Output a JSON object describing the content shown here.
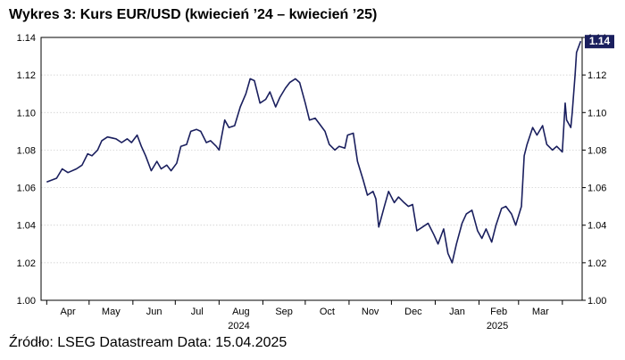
{
  "title": "Wykres 3: Kurs EUR/USD (kwiecień ’24 – kwiecień ’25)",
  "source": "Źródło: LSEG Datastream Data: 15.04.2025",
  "chart_data": {
    "type": "line",
    "ylim": [
      1.0,
      1.14
    ],
    "y_ticks": [
      "1.00",
      "1.02",
      "1.04",
      "1.06",
      "1.08",
      "1.10",
      "1.12",
      "1.14"
    ],
    "x_month_labels": [
      "Apr",
      "May",
      "Jun",
      "Jul",
      "Aug",
      "Sep",
      "Oct",
      "Nov",
      "Dec",
      "Jan",
      "Feb",
      "Mar"
    ],
    "x_year_labels": [
      "2024",
      "2025"
    ],
    "last_value_label": "1.14",
    "grid": true,
    "series": [
      {
        "color": "#1a1f5e",
        "points": [
          [
            "2024-04-01",
            1.063
          ],
          [
            "2024-04-08",
            1.065
          ],
          [
            "2024-04-12",
            1.07
          ],
          [
            "2024-04-16",
            1.068
          ],
          [
            "2024-04-22",
            1.07
          ],
          [
            "2024-04-26",
            1.072
          ],
          [
            "2024-04-30",
            1.078
          ],
          [
            "2024-05-03",
            1.077
          ],
          [
            "2024-05-07",
            1.08
          ],
          [
            "2024-05-10",
            1.085
          ],
          [
            "2024-05-14",
            1.087
          ],
          [
            "2024-05-20",
            1.086
          ],
          [
            "2024-05-24",
            1.084
          ],
          [
            "2024-05-28",
            1.086
          ],
          [
            "2024-05-31",
            1.084
          ],
          [
            "2024-06-04",
            1.088
          ],
          [
            "2024-06-07",
            1.082
          ],
          [
            "2024-06-10",
            1.077
          ],
          [
            "2024-06-14",
            1.069
          ],
          [
            "2024-06-18",
            1.074
          ],
          [
            "2024-06-21",
            1.07
          ],
          [
            "2024-06-25",
            1.072
          ],
          [
            "2024-06-28",
            1.069
          ],
          [
            "2024-07-02",
            1.073
          ],
          [
            "2024-07-05",
            1.082
          ],
          [
            "2024-07-09",
            1.083
          ],
          [
            "2024-07-12",
            1.09
          ],
          [
            "2024-07-16",
            1.091
          ],
          [
            "2024-07-19",
            1.09
          ],
          [
            "2024-07-23",
            1.084
          ],
          [
            "2024-07-26",
            1.085
          ],
          [
            "2024-07-30",
            1.082
          ],
          [
            "2024-08-01",
            1.08
          ],
          [
            "2024-08-05",
            1.096
          ],
          [
            "2024-08-08",
            1.092
          ],
          [
            "2024-08-12",
            1.093
          ],
          [
            "2024-08-16",
            1.103
          ],
          [
            "2024-08-20",
            1.11
          ],
          [
            "2024-08-23",
            1.118
          ],
          [
            "2024-08-26",
            1.117
          ],
          [
            "2024-08-30",
            1.105
          ],
          [
            "2024-09-03",
            1.107
          ],
          [
            "2024-09-06",
            1.111
          ],
          [
            "2024-09-10",
            1.103
          ],
          [
            "2024-09-13",
            1.108
          ],
          [
            "2024-09-17",
            1.113
          ],
          [
            "2024-09-20",
            1.116
          ],
          [
            "2024-09-24",
            1.118
          ],
          [
            "2024-09-27",
            1.116
          ],
          [
            "2024-10-01",
            1.105
          ],
          [
            "2024-10-04",
            1.096
          ],
          [
            "2024-10-08",
            1.097
          ],
          [
            "2024-10-11",
            1.094
          ],
          [
            "2024-10-15",
            1.09
          ],
          [
            "2024-10-18",
            1.083
          ],
          [
            "2024-10-22",
            1.08
          ],
          [
            "2024-10-25",
            1.082
          ],
          [
            "2024-10-29",
            1.081
          ],
          [
            "2024-10-31",
            1.088
          ],
          [
            "2024-11-04",
            1.089
          ],
          [
            "2024-11-07",
            1.074
          ],
          [
            "2024-11-11",
            1.064
          ],
          [
            "2024-11-14",
            1.056
          ],
          [
            "2024-11-18",
            1.058
          ],
          [
            "2024-11-20",
            1.054
          ],
          [
            "2024-11-22",
            1.039
          ],
          [
            "2024-11-26",
            1.05
          ],
          [
            "2024-11-29",
            1.058
          ],
          [
            "2024-12-03",
            1.052
          ],
          [
            "2024-12-06",
            1.055
          ],
          [
            "2024-12-10",
            1.052
          ],
          [
            "2024-12-13",
            1.05
          ],
          [
            "2024-12-16",
            1.051
          ],
          [
            "2024-12-19",
            1.037
          ],
          [
            "2024-12-23",
            1.039
          ],
          [
            "2024-12-27",
            1.041
          ],
          [
            "2024-12-31",
            1.035
          ],
          [
            "2025-01-03",
            1.03
          ],
          [
            "2025-01-07",
            1.038
          ],
          [
            "2025-01-10",
            1.025
          ],
          [
            "2025-01-13",
            1.02
          ],
          [
            "2025-01-16",
            1.03
          ],
          [
            "2025-01-20",
            1.041
          ],
          [
            "2025-01-23",
            1.046
          ],
          [
            "2025-01-27",
            1.048
          ],
          [
            "2025-01-31",
            1.037
          ],
          [
            "2025-02-03",
            1.033
          ],
          [
            "2025-02-06",
            1.038
          ],
          [
            "2025-02-10",
            1.031
          ],
          [
            "2025-02-13",
            1.04
          ],
          [
            "2025-02-17",
            1.049
          ],
          [
            "2025-02-20",
            1.05
          ],
          [
            "2025-02-24",
            1.046
          ],
          [
            "2025-02-27",
            1.04
          ],
          [
            "2025-03-03",
            1.05
          ],
          [
            "2025-03-05",
            1.077
          ],
          [
            "2025-03-07",
            1.083
          ],
          [
            "2025-03-11",
            1.092
          ],
          [
            "2025-03-14",
            1.088
          ],
          [
            "2025-03-18",
            1.093
          ],
          [
            "2025-03-21",
            1.083
          ],
          [
            "2025-03-25",
            1.08
          ],
          [
            "2025-03-28",
            1.082
          ],
          [
            "2025-04-01",
            1.079
          ],
          [
            "2025-04-03",
            1.105
          ],
          [
            "2025-04-04",
            1.096
          ],
          [
            "2025-04-07",
            1.092
          ],
          [
            "2025-04-08",
            1.1
          ],
          [
            "2025-04-10",
            1.12
          ],
          [
            "2025-04-11",
            1.132
          ],
          [
            "2025-04-14",
            1.138
          ]
        ]
      }
    ]
  }
}
